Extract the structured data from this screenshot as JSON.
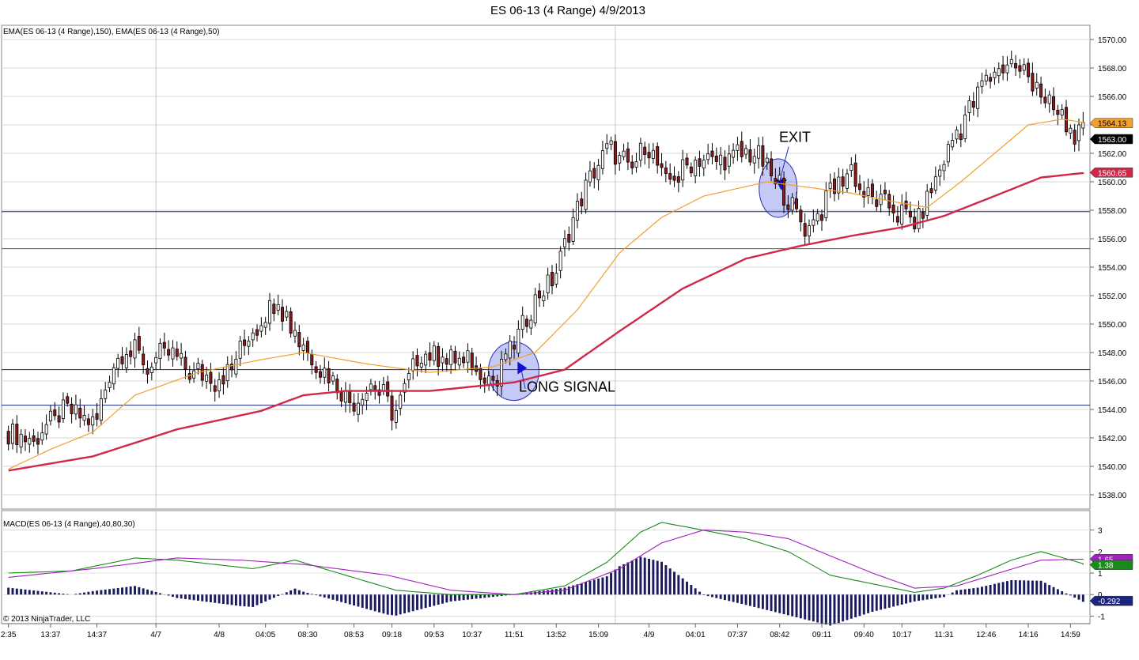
{
  "title": "ES 06-13 (4 Range)  4/9/2013",
  "price_panel": {
    "label": "EMA(ES 06-13 (4 Range),150), EMA(ES 06-13 (4 Range),50)",
    "ylim": [
      1537,
      1571
    ],
    "ticks": [
      "1538.00",
      "1540.00",
      "1542.00",
      "1544.00",
      "1546.00",
      "1548.00",
      "1550.00",
      "1552.00",
      "1554.00",
      "1556.00",
      "1558.00",
      "1560.00",
      "1562.00",
      "1564.00",
      "1566.00",
      "1568.00",
      "1570.00"
    ],
    "price_markers": [
      {
        "label": "1564.13",
        "value": 1564.13,
        "color": "#f0a030",
        "text_color": "#000000"
      },
      {
        "label": "1563.00",
        "value": 1563.0,
        "color": "#000000",
        "text_color": "#ffffff"
      },
      {
        "label": "1560.65",
        "value": 1560.65,
        "color": "#d0284a",
        "text_color": "#ffffff"
      }
    ],
    "horizontal_lines": [
      {
        "value": 1557.9,
        "color": "#1a237e"
      },
      {
        "value": 1555.3,
        "color": "#555555"
      },
      {
        "value": 1546.8,
        "color": "#1a237e"
      },
      {
        "value": 1544.3,
        "color": "#1a237e"
      }
    ],
    "annotations": [
      {
        "text": "LONG SIGNAL",
        "bar": 120,
        "price": 1545.8
      },
      {
        "text": "EXIT",
        "bar": 184,
        "price": 1562.8
      }
    ],
    "signal_markers": [
      {
        "type": "long",
        "bar": 118,
        "price": 1546.8
      },
      {
        "type": "exit",
        "bar": 180,
        "price": 1559.5
      }
    ]
  },
  "macd_panel": {
    "label": "MACD(ES 06-13 (4 Range),40,80,30)",
    "ylim": [
      -1.35,
      3.9
    ],
    "ticks": [
      "-1",
      "0",
      "1",
      "2",
      "3"
    ],
    "value_markers": [
      {
        "label": "1.65",
        "value": 1.65,
        "color": "#a020c0",
        "text_color": "#ffffff"
      },
      {
        "label": "1.38",
        "value": 1.38,
        "color": "#1a8a1a",
        "text_color": "#ffffff"
      },
      {
        "label": "-0.292",
        "value": -0.292,
        "color": "#1a237e",
        "text_color": "#ffffff"
      }
    ]
  },
  "x_axis": {
    "labels": [
      {
        "text": "2:35",
        "bar": 0
      },
      {
        "text": "13:37",
        "bar": 10
      },
      {
        "text": "14:37",
        "bar": 21
      },
      {
        "text": "4/7",
        "bar": 35
      },
      {
        "text": "4/8",
        "bar": 50
      },
      {
        "text": "04:05",
        "bar": 61
      },
      {
        "text": "08:30",
        "bar": 71
      },
      {
        "text": "08:53",
        "bar": 82
      },
      {
        "text": "09:18",
        "bar": 91
      },
      {
        "text": "09:53",
        "bar": 101
      },
      {
        "text": "10:37",
        "bar": 110
      },
      {
        "text": "11:51",
        "bar": 120
      },
      {
        "text": "13:52",
        "bar": 130
      },
      {
        "text": "15:09",
        "bar": 140
      },
      {
        "text": "4/9",
        "bar": 152
      },
      {
        "text": "04:01",
        "bar": 163
      },
      {
        "text": "07:37",
        "bar": 173
      },
      {
        "text": "08:42",
        "bar": 183
      },
      {
        "text": "09:11",
        "bar": 193
      },
      {
        "text": "09:40",
        "bar": 203
      },
      {
        "text": "10:17",
        "bar": 212
      },
      {
        "text": "11:31",
        "bar": 222
      },
      {
        "text": "12:46",
        "bar": 232
      },
      {
        "text": "14:16",
        "bar": 242
      },
      {
        "text": "14:59",
        "bar": 252
      }
    ],
    "session_breaks": [
      35,
      144
    ]
  },
  "copyright": "© 2013 NinjaTrader, LLC",
  "colors": {
    "up_candle": "#ffffff",
    "down_candle": "#8b1a1a",
    "ema50": "#f0a030",
    "ema150": "#d0284a",
    "macd_line": "#1a8a1a",
    "signal_line": "#a020c0",
    "histogram": "#1a1a5e",
    "signal_fill": "rgba(90,100,230,0.35)",
    "arrow": "#1010d0"
  },
  "chart_data": {
    "type": "candlestick",
    "bars": 256,
    "price_path": [
      [
        0,
        1542.4
      ],
      [
        6,
        1542.0
      ],
      [
        14,
        1544.0
      ],
      [
        21,
        1543.0
      ],
      [
        25,
        1547.0
      ],
      [
        29,
        1548.6
      ],
      [
        34,
        1547.0
      ],
      [
        38,
        1548.4
      ],
      [
        44,
        1546.4
      ],
      [
        52,
        1546.4
      ],
      [
        58,
        1549.5
      ],
      [
        64,
        1551.7
      ],
      [
        70,
        1548.4
      ],
      [
        76,
        1546.6
      ],
      [
        82,
        1544.4
      ],
      [
        88,
        1546.0
      ],
      [
        92,
        1543.5
      ],
      [
        98,
        1548.0
      ],
      [
        104,
        1547.6
      ],
      [
        110,
        1547.4
      ],
      [
        116,
        1546.0
      ],
      [
        120,
        1548.3
      ],
      [
        126,
        1552.0
      ],
      [
        130,
        1553.2
      ],
      [
        134,
        1557.0
      ],
      [
        138,
        1560.0
      ],
      [
        143,
        1562.5
      ],
      [
        148,
        1560.5
      ],
      [
        152,
        1563.0
      ],
      [
        156,
        1560.0
      ],
      [
        164,
        1561.6
      ],
      [
        172,
        1561.6
      ],
      [
        178,
        1562.0
      ],
      [
        186,
        1558.5
      ],
      [
        190,
        1556.5
      ],
      [
        196,
        1559.3
      ],
      [
        200,
        1560.8
      ],
      [
        205,
        1558.8
      ],
      [
        212,
        1558.0
      ],
      [
        216,
        1557.0
      ],
      [
        220,
        1559.8
      ],
      [
        226,
        1564.0
      ],
      [
        232,
        1566.8
      ],
      [
        238,
        1568.5
      ],
      [
        242,
        1567.6
      ],
      [
        246,
        1566.0
      ],
      [
        252,
        1563.6
      ],
      [
        256,
        1563.0
      ]
    ],
    "ema50_path": [
      [
        0,
        1539.8
      ],
      [
        10,
        1541.2
      ],
      [
        20,
        1542.4
      ],
      [
        30,
        1545.0
      ],
      [
        45,
        1546.6
      ],
      [
        60,
        1547.5
      ],
      [
        70,
        1548.0
      ],
      [
        85,
        1547.2
      ],
      [
        100,
        1546.6
      ],
      [
        115,
        1547.0
      ],
      [
        125,
        1548.0
      ],
      [
        135,
        1551.0
      ],
      [
        145,
        1555.0
      ],
      [
        155,
        1557.5
      ],
      [
        165,
        1559.0
      ],
      [
        180,
        1560.0
      ],
      [
        190,
        1559.6
      ],
      [
        200,
        1559.2
      ],
      [
        210,
        1558.6
      ],
      [
        218,
        1558.2
      ],
      [
        226,
        1560.0
      ],
      [
        234,
        1562.0
      ],
      [
        242,
        1564.0
      ],
      [
        250,
        1564.4
      ],
      [
        256,
        1564.13
      ]
    ],
    "ema150_path": [
      [
        0,
        1539.7
      ],
      [
        20,
        1540.7
      ],
      [
        40,
        1542.6
      ],
      [
        60,
        1543.9
      ],
      [
        70,
        1545.0
      ],
      [
        80,
        1545.3
      ],
      [
        100,
        1545.3
      ],
      [
        120,
        1545.9
      ],
      [
        132,
        1546.8
      ],
      [
        145,
        1549.5
      ],
      [
        160,
        1552.5
      ],
      [
        175,
        1554.6
      ],
      [
        188,
        1555.5
      ],
      [
        200,
        1556.2
      ],
      [
        212,
        1556.8
      ],
      [
        222,
        1557.6
      ],
      [
        234,
        1559.0
      ],
      [
        245,
        1560.3
      ],
      [
        256,
        1560.65
      ]
    ],
    "macd_path": [
      [
        0,
        1.0
      ],
      [
        15,
        1.1
      ],
      [
        30,
        1.7
      ],
      [
        40,
        1.6
      ],
      [
        58,
        1.2
      ],
      [
        68,
        1.6
      ],
      [
        80,
        0.9
      ],
      [
        92,
        0.2
      ],
      [
        105,
        0.0
      ],
      [
        120,
        0.0
      ],
      [
        132,
        0.4
      ],
      [
        142,
        1.5
      ],
      [
        150,
        2.9
      ],
      [
        155,
        3.35
      ],
      [
        162,
        3.1
      ],
      [
        175,
        2.6
      ],
      [
        185,
        2.0
      ],
      [
        195,
        0.9
      ],
      [
        205,
        0.5
      ],
      [
        215,
        0.1
      ],
      [
        222,
        0.3
      ],
      [
        230,
        0.9
      ],
      [
        238,
        1.6
      ],
      [
        245,
        2.0
      ],
      [
        256,
        1.38
      ]
    ],
    "signal_path": [
      [
        0,
        0.8
      ],
      [
        20,
        1.2
      ],
      [
        40,
        1.7
      ],
      [
        55,
        1.6
      ],
      [
        70,
        1.4
      ],
      [
        90,
        0.9
      ],
      [
        105,
        0.2
      ],
      [
        120,
        0.0
      ],
      [
        132,
        0.2
      ],
      [
        145,
        1.2
      ],
      [
        155,
        2.4
      ],
      [
        165,
        3.0
      ],
      [
        175,
        2.9
      ],
      [
        185,
        2.6
      ],
      [
        195,
        1.8
      ],
      [
        205,
        1.0
      ],
      [
        215,
        0.3
      ],
      [
        225,
        0.4
      ],
      [
        235,
        1.0
      ],
      [
        245,
        1.6
      ],
      [
        256,
        1.65
      ]
    ]
  }
}
